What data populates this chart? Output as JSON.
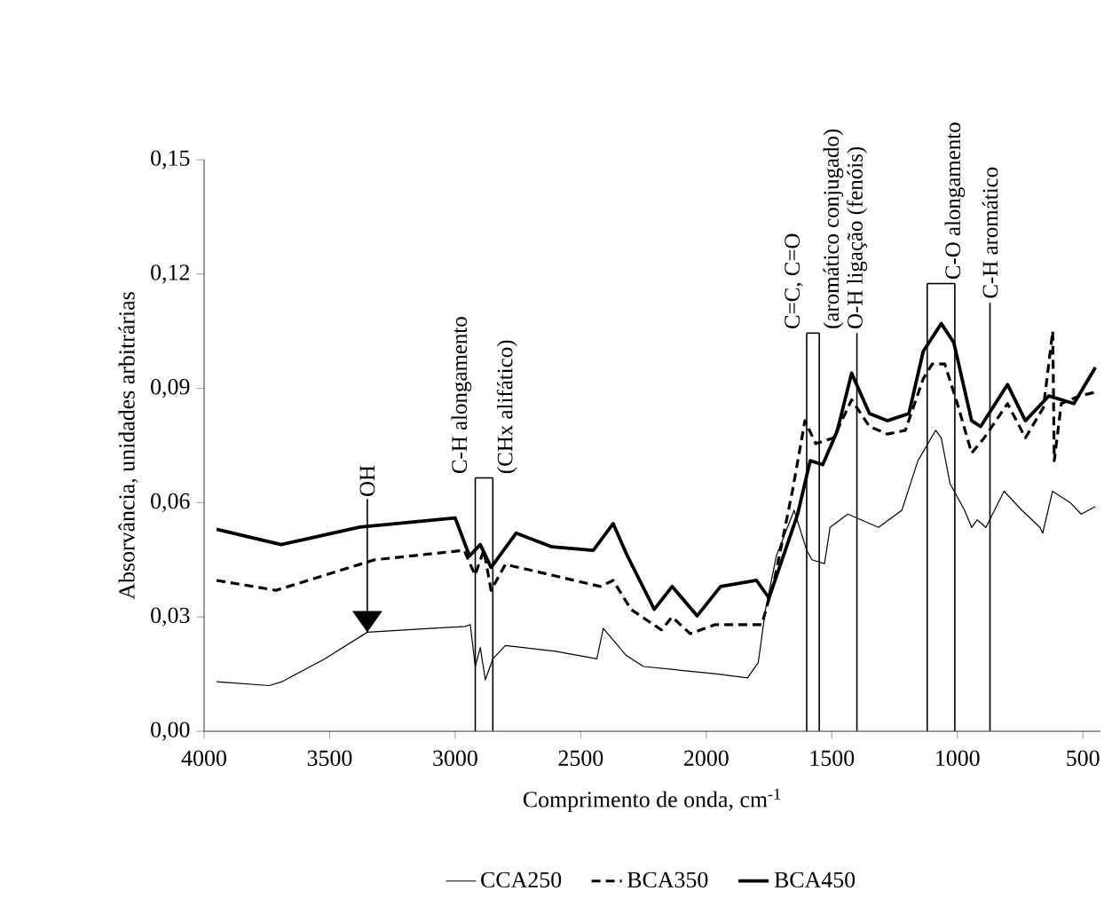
{
  "chart_data": {
    "type": "line",
    "xlabel": "Comprimento de onda, cm$^{-1}$",
    "ylabel": "Absorvância, unidades arbitrárias",
    "xlim": [
      4000,
      430
    ],
    "xticks": [
      4000,
      3500,
      3000,
      2500,
      2000,
      1500,
      1000,
      500
    ],
    "ylim": [
      0,
      0.15
    ],
    "yticks": [
      {
        "value": 0,
        "label": "0,00"
      },
      {
        "value": 0.03,
        "label": "0,03"
      },
      {
        "value": 0.06,
        "label": "0,06"
      },
      {
        "value": 0.09,
        "label": "0,09"
      },
      {
        "value": 0.12,
        "label": "0,12"
      },
      {
        "value": 0.15,
        "label": "0,15"
      }
    ],
    "legend": "bottom",
    "grid": false,
    "marker": "none",
    "series": [
      {
        "name": "CCA250",
        "color": "#000000",
        "line_style": "solid",
        "x": [
          3950,
          3740,
          3690,
          3520,
          3350,
          3100,
          2960,
          2940,
          2920,
          2900,
          2880,
          2850,
          2800,
          2600,
          2436,
          2410,
          2320,
          2250,
          2100,
          1950,
          1836,
          1793,
          1764,
          1721,
          1650,
          1600,
          1579,
          1529,
          1507,
          1436,
          1314,
          1221,
          1157,
          1086,
          1064,
          1029,
          971,
          943,
          921,
          886,
          814,
          743,
          671,
          660,
          621,
          550,
          507,
          450
        ],
        "values": [
          0.013,
          0.012,
          0.013,
          0.019,
          0.026,
          0.027,
          0.0275,
          0.028,
          0.017,
          0.022,
          0.0135,
          0.019,
          0.0225,
          0.021,
          0.019,
          0.027,
          0.02,
          0.017,
          0.016,
          0.015,
          0.014,
          0.018,
          0.032,
          0.046,
          0.058,
          0.0475,
          0.045,
          0.044,
          0.0535,
          0.057,
          0.0535,
          0.058,
          0.071,
          0.079,
          0.077,
          0.065,
          0.058,
          0.0535,
          0.0555,
          0.0535,
          0.063,
          0.058,
          0.0535,
          0.052,
          0.063,
          0.06,
          0.057,
          0.059
        ]
      },
      {
        "name": "BCA350",
        "color": "#000000",
        "line_style": "dashed",
        "x": [
          3950,
          3714,
          3321,
          2964,
          2921,
          2886,
          2857,
          2800,
          2421,
          2371,
          2300,
          2179,
          2136,
          2064,
          1964,
          1779,
          1729,
          1657,
          1607,
          1564,
          1493,
          1421,
          1350,
          1279,
          1207,
          1136,
          1100,
          1050,
          1000,
          943,
          893,
          800,
          729,
          657,
          620,
          614,
          586,
          514,
          450
        ],
        "values": [
          0.0396,
          0.037,
          0.045,
          0.0475,
          0.041,
          0.0475,
          0.037,
          0.0438,
          0.038,
          0.0396,
          0.032,
          0.0266,
          0.03,
          0.0256,
          0.028,
          0.028,
          0.0396,
          0.063,
          0.0815,
          0.0755,
          0.077,
          0.087,
          0.08,
          0.078,
          0.079,
          0.0925,
          0.0964,
          0.0964,
          0.086,
          0.073,
          0.077,
          0.086,
          0.077,
          0.085,
          0.105,
          0.071,
          0.086,
          0.088,
          0.089
        ]
      },
      {
        "name": "BCA450",
        "color": "#000000",
        "line_style": "solid",
        "x": [
          3950,
          3693,
          3379,
          3000,
          2943,
          2900,
          2857,
          2757,
          2614,
          2450,
          2371,
          2314,
          2207,
          2136,
          2036,
          1943,
          1800,
          1750,
          1636,
          1586,
          1536,
          1479,
          1421,
          1350,
          1279,
          1193,
          1136,
          1064,
          1014,
          943,
          907,
          800,
          729,
          636,
          536,
          450
        ],
        "values": [
          0.053,
          0.049,
          0.0536,
          0.056,
          0.046,
          0.049,
          0.043,
          0.052,
          0.0484,
          0.0475,
          0.0545,
          0.046,
          0.032,
          0.038,
          0.0303,
          0.038,
          0.0396,
          0.035,
          0.057,
          0.071,
          0.07,
          0.0787,
          0.094,
          0.0834,
          0.0815,
          0.0834,
          0.0997,
          0.107,
          0.102,
          0.0815,
          0.08,
          0.091,
          0.0815,
          0.088,
          0.086,
          0.0955
        ]
      }
    ],
    "ref_lines": [
      {
        "axis": "x",
        "value": 2920,
        "label": "C-H alongamento"
      },
      {
        "axis": "x",
        "value": 2850,
        "label": "(CHx alifático)"
      },
      {
        "axis": "x",
        "value": 1600,
        "label": "C=C, C=O"
      },
      {
        "axis": "x",
        "value": 1550,
        "label": "(aromático conjugado)"
      },
      {
        "axis": "x",
        "value": 1400,
        "label": "O-H ligação (fenóis)"
      },
      {
        "axis": "x",
        "value": 1120
      },
      {
        "axis": "x",
        "value": 1010,
        "label": "C-O alongamento"
      },
      {
        "axis": "x",
        "value": 870,
        "label": "C-H aromático"
      }
    ],
    "annotations": [
      {
        "text": "OH",
        "x": 3350,
        "y": 0.026
      }
    ]
  }
}
